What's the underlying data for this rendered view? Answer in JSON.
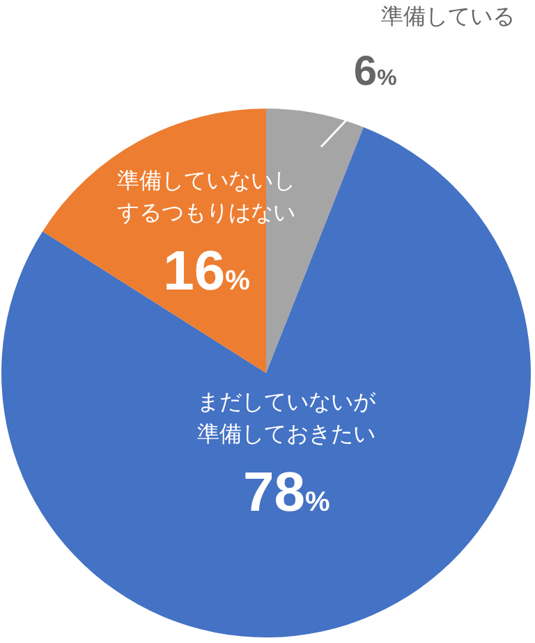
{
  "chart_data": {
    "type": "pie",
    "categories": [
      "準備している",
      "まだしていないが準備しておきたい",
      "準備していないしするつもりはない"
    ],
    "values": [
      6,
      78,
      16
    ],
    "colors": [
      "#a5a5a5",
      "#4472c4",
      "#ed7d31"
    ],
    "value_labels": [
      "6%",
      "78%",
      "16%"
    ]
  }
}
